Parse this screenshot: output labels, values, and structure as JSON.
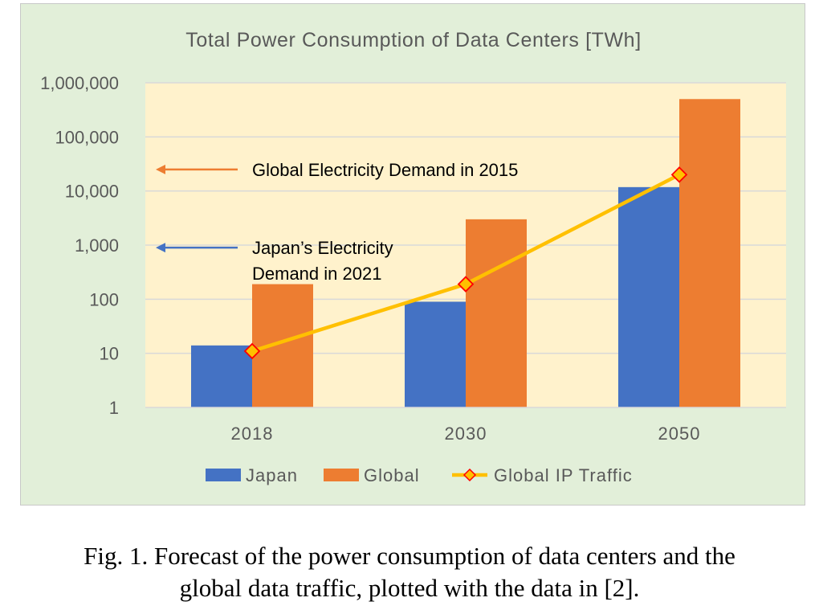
{
  "chart_data": {
    "type": "bar",
    "title": "Total Power Consumption of Data Centers [TWh]",
    "y_scale": "log",
    "ylim": [
      1,
      1000000
    ],
    "y_ticks": [
      "1",
      "10",
      "100",
      "1,000",
      "10,000",
      "100,000",
      "1,000,000"
    ],
    "categories": [
      "2018",
      "2030",
      "2050"
    ],
    "series": [
      {
        "name": "Japan",
        "kind": "bar",
        "color": "#4472c4",
        "values": [
          14,
          90,
          11800
        ]
      },
      {
        "name": "Global",
        "kind": "bar",
        "color": "#ed7d31",
        "values": [
          190,
          3000,
          500000
        ]
      },
      {
        "name": "Global IP Traffic",
        "kind": "line",
        "color": "#ffc000",
        "marker_color": "#ff0000",
        "values": [
          11,
          190,
          20000
        ]
      }
    ],
    "annotations": [
      {
        "text_lines": [
          "Global Electricity Demand in 2015"
        ],
        "value": 25000,
        "color": "#ed7d31"
      },
      {
        "text_lines": [
          "Japan’s Electricity",
          "Demand in 2021"
        ],
        "value": 900,
        "color": "#4472c4"
      }
    ],
    "colors": {
      "frame_bg": "#e2efd9",
      "plot_bg": "#fff2cc",
      "grid": "#d9d9d9",
      "axis_text": "#595959"
    }
  },
  "caption": {
    "line1": "Fig. 1. Forecast of the power consumption of data centers and the",
    "line2": "global data traffic, plotted with the data in [2]."
  }
}
